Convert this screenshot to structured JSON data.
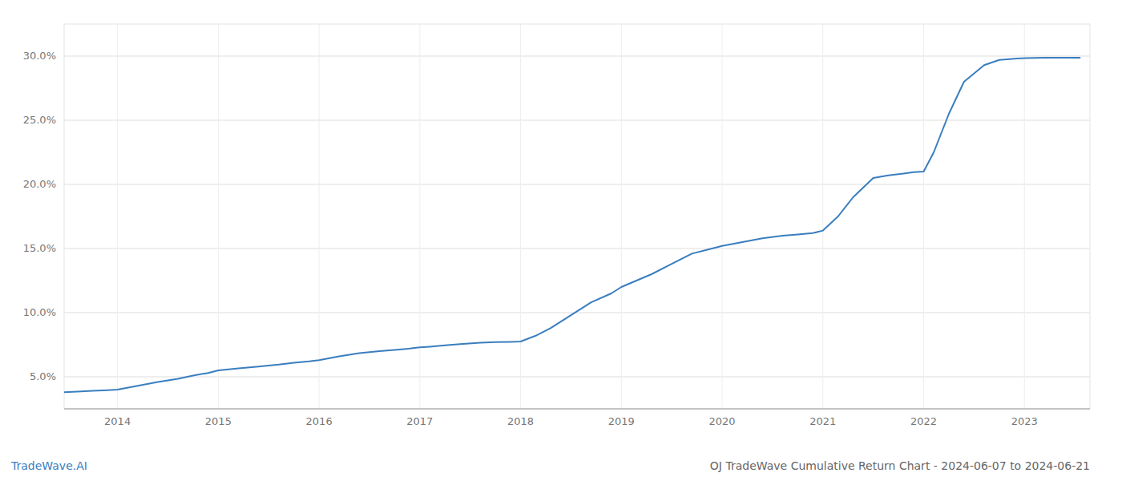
{
  "chart_data": {
    "type": "line",
    "title": "OJ TradeWave Cumulative Return Chart - 2024-06-07 to 2024-06-21",
    "annotations": [
      "TradeWave.AI"
    ],
    "color": "#3a7ebf",
    "grid": true,
    "x": [
      2013.47,
      2013.6,
      2013.75,
      2013.9,
      2014.0,
      2014.2,
      2014.4,
      2014.6,
      2014.75,
      2014.9,
      2015.0,
      2015.2,
      2015.4,
      2015.6,
      2015.75,
      2015.9,
      2016.0,
      2016.2,
      2016.4,
      2016.6,
      2016.75,
      2016.9,
      2017.0,
      2017.1,
      2017.25,
      2017.4,
      2017.6,
      2017.75,
      2017.9,
      2018.0,
      2018.15,
      2018.3,
      2018.5,
      2018.7,
      2018.9,
      2019.0,
      2019.15,
      2019.3,
      2019.5,
      2019.7,
      2019.9,
      2020.0,
      2020.2,
      2020.4,
      2020.6,
      2020.75,
      2020.9,
      2021.0,
      2021.15,
      2021.3,
      2021.5,
      2021.65,
      2021.8,
      2021.9,
      2022.0,
      2022.1,
      2022.25,
      2022.4,
      2022.6,
      2022.75,
      2022.9,
      2023.0,
      2023.2,
      2023.4,
      2023.55
    ],
    "values": [
      3.8,
      3.85,
      3.9,
      3.95,
      4.0,
      4.3,
      4.6,
      4.85,
      5.1,
      5.3,
      5.5,
      5.65,
      5.8,
      5.95,
      6.1,
      6.2,
      6.3,
      6.6,
      6.85,
      7.0,
      7.1,
      7.2,
      7.3,
      7.35,
      7.45,
      7.55,
      7.65,
      7.7,
      7.72,
      7.75,
      8.2,
      8.8,
      9.8,
      10.8,
      11.5,
      12.0,
      12.5,
      13.0,
      13.8,
      14.6,
      15.0,
      15.2,
      15.5,
      15.8,
      16.0,
      16.1,
      16.2,
      16.4,
      17.5,
      19.0,
      20.5,
      20.7,
      20.85,
      20.95,
      21.0,
      22.5,
      25.5,
      28.0,
      29.3,
      29.7,
      29.8,
      29.85,
      29.87,
      29.88,
      29.88
    ],
    "xlim": [
      2013.47,
      2023.65
    ],
    "ylim": [
      2.5,
      32.5
    ],
    "xticks": [
      2014,
      2015,
      2016,
      2017,
      2018,
      2019,
      2020,
      2021,
      2022,
      2023
    ],
    "yticks": [
      {
        "value": 5.0,
        "label": "5.0%"
      },
      {
        "value": 10.0,
        "label": "10.0%"
      },
      {
        "value": 15.0,
        "label": "15.0%"
      },
      {
        "value": 20.0,
        "label": "20.0%"
      },
      {
        "value": 25.0,
        "label": "25.0%"
      },
      {
        "value": 30.0,
        "label": "30.0%"
      }
    ]
  }
}
